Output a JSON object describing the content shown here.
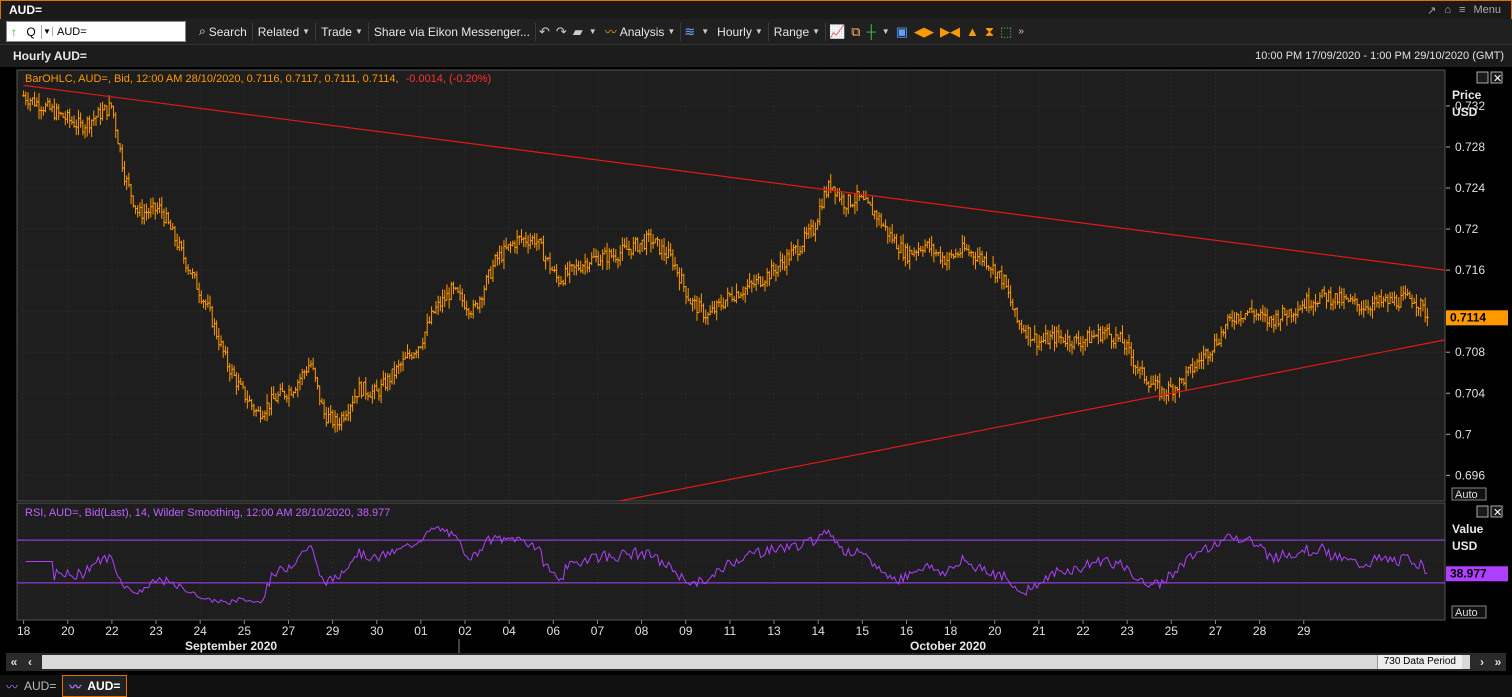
{
  "window": {
    "title": "AUD=",
    "menu_label": "Menu"
  },
  "toolbar": {
    "ric_value": "AUD=",
    "q_label": "Q",
    "search": "Search",
    "related": "Related",
    "trade": "Trade",
    "share": "Share via Eikon Messenger...",
    "analysis": "Analysis",
    "hourly": "Hourly",
    "range": "Range"
  },
  "header": {
    "title": "Hourly AUD=",
    "date_range": "10:00 PM 17/09/2020 - 1:00 PM 29/10/2020 (GMT)"
  },
  "bottom": {
    "period": "730 Data Period"
  },
  "tabs": [
    {
      "label": "AUD="
    },
    {
      "label": "AUD="
    }
  ],
  "colors": {
    "price": "#ff9900",
    "trend": "#e01818",
    "rsi": "#b040ff",
    "accent": "#e07000"
  },
  "chart_data": [
    {
      "type": "ohlc",
      "legend": "BarOHLC, AUD=, Bid, 12:00 AM 28/10/2020, 0.7116, 0.7117, 0.7111, 0.7114,",
      "legend_change": "-0.0014, (-0.20%)",
      "axis_title": [
        "Price",
        "USD"
      ],
      "scale_mode": "Auto",
      "ylim": [
        0.6935,
        0.7355
      ],
      "yticks": [
        0.732,
        0.728,
        0.724,
        0.72,
        0.716,
        0.712,
        0.708,
        0.704,
        0.7,
        0.696
      ],
      "ytick_labels": [
        "0.732",
        "0.728",
        "0.724",
        "0.72",
        "0.716",
        "",
        "0.708",
        "0.704",
        "0.7",
        "0.696"
      ],
      "last_value": "0.7114",
      "last": 0.7114,
      "close_path": [
        [
          0,
          0.733
        ],
        [
          1.3,
          0.73
        ],
        [
          2,
          0.732
        ],
        [
          2.3,
          0.725
        ],
        [
          2.6,
          0.7215
        ],
        [
          3.1,
          0.722
        ],
        [
          3.6,
          0.7175
        ],
        [
          4.2,
          0.712
        ],
        [
          4.6,
          0.707
        ],
        [
          4.9,
          0.7045
        ],
        [
          5.3,
          0.702
        ],
        [
          5.7,
          0.7035
        ],
        [
          6.1,
          0.7045
        ],
        [
          6.5,
          0.707
        ],
        [
          6.8,
          0.702
        ],
        [
          7.1,
          0.701
        ],
        [
          7.6,
          0.7045
        ],
        [
          8.0,
          0.704
        ],
        [
          8.6,
          0.707
        ],
        [
          9.0,
          0.709
        ],
        [
          9.3,
          0.712
        ],
        [
          9.7,
          0.714
        ],
        [
          10.2,
          0.712
        ],
        [
          10.7,
          0.717
        ],
        [
          11.2,
          0.719
        ],
        [
          11.6,
          0.719
        ],
        [
          12.1,
          0.715
        ],
        [
          12.8,
          0.717
        ],
        [
          13.4,
          0.7175
        ],
        [
          14.2,
          0.719
        ],
        [
          14.7,
          0.717
        ],
        [
          15.1,
          0.713
        ],
        [
          15.5,
          0.7115
        ],
        [
          16.0,
          0.7135
        ],
        [
          16.5,
          0.7145
        ],
        [
          17.0,
          0.716
        ],
        [
          17.5,
          0.718
        ],
        [
          17.9,
          0.72
        ],
        [
          18.1,
          0.723
        ],
        [
          18.3,
          0.7245
        ],
        [
          18.6,
          0.7225
        ],
        [
          18.9,
          0.723
        ],
        [
          19.3,
          0.7215
        ],
        [
          19.6,
          0.7195
        ],
        [
          20.0,
          0.7175
        ],
        [
          20.4,
          0.7185
        ],
        [
          20.9,
          0.717
        ],
        [
          21.3,
          0.718
        ],
        [
          21.8,
          0.717
        ],
        [
          22.2,
          0.715
        ],
        [
          22.5,
          0.711
        ],
        [
          23.0,
          0.709
        ],
        [
          23.4,
          0.7095
        ],
        [
          23.9,
          0.709
        ],
        [
          24.5,
          0.71
        ],
        [
          24.9,
          0.709
        ],
        [
          25.3,
          0.706
        ],
        [
          25.8,
          0.704
        ],
        [
          26.2,
          0.705
        ],
        [
          26.6,
          0.707
        ],
        [
          27.0,
          0.709
        ],
        [
          27.4,
          0.7115
        ],
        [
          27.8,
          0.712
        ],
        [
          28.2,
          0.711
        ],
        [
          28.7,
          0.712
        ],
        [
          29.1,
          0.713
        ],
        [
          29.5,
          0.7135
        ],
        [
          29.9,
          0.713
        ],
        [
          30.3,
          0.7125
        ],
        [
          30.7,
          0.7128
        ],
        [
          31.1,
          0.713
        ],
        [
          31.5,
          0.7133
        ],
        [
          31.8,
          0.7116
        ]
      ],
      "trendlines": [
        {
          "points": [
            [
              0,
              0.734
            ],
            [
              32.2,
              0.716
            ]
          ]
        },
        {
          "points": [
            [
              13.5,
              0.6935
            ],
            [
              32.2,
              0.7092
            ]
          ]
        }
      ]
    },
    {
      "type": "line",
      "legend": "RSI, AUD=, Bid(Last),  14, Wilder Smoothing, 12:00 AM 28/10/2020, 38.977",
      "axis_title": [
        "Value",
        "USD"
      ],
      "scale_mode": "Auto",
      "ylim": [
        0,
        100
      ],
      "overbought": 70,
      "oversold": 30,
      "last_value": "38.977",
      "last": 38.977
    }
  ],
  "x_axis": {
    "dates": [
      "18",
      "20",
      "22",
      "23",
      "24",
      "25",
      "27",
      "29",
      "30",
      "01",
      "02",
      "04",
      "06",
      "07",
      "08",
      "09",
      "11",
      "13",
      "14",
      "15",
      "16",
      "18",
      "20",
      "21",
      "22",
      "23",
      "25",
      "27",
      "28",
      "29"
    ],
    "months": [
      {
        "label": "September 2020"
      },
      {
        "label": "October 2020"
      }
    ]
  }
}
